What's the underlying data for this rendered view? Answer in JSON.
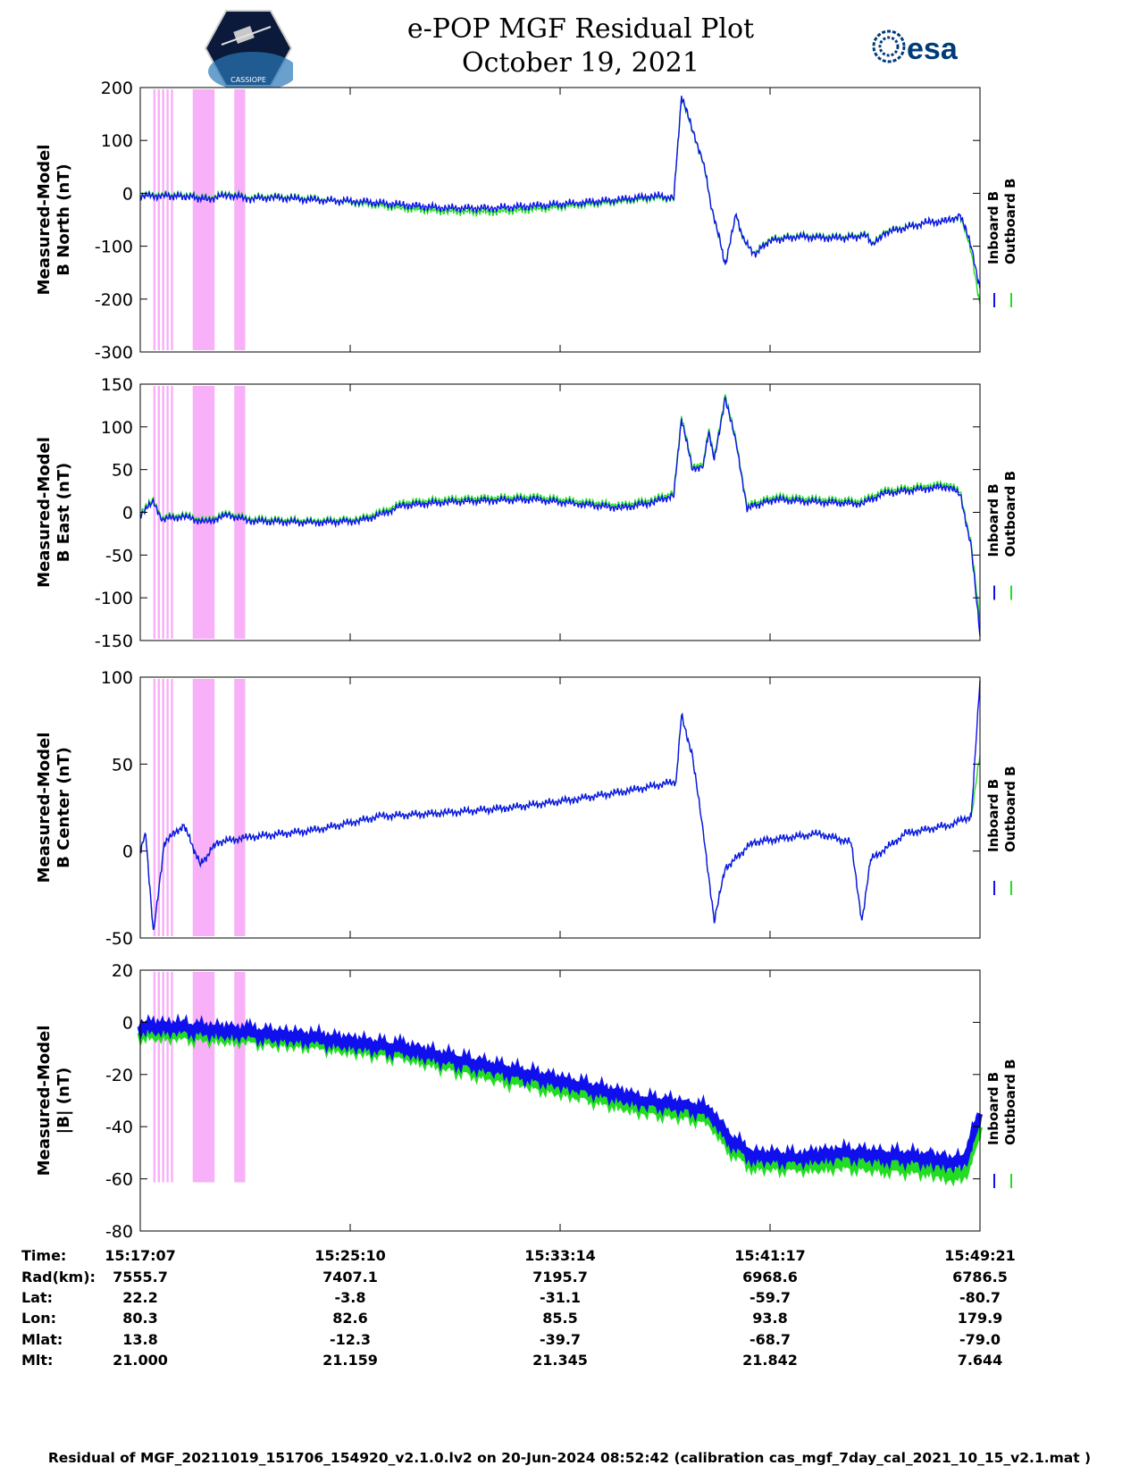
{
  "header": {
    "title_line1": "e-POP MGF Residual Plot",
    "title_line2": "October 19, 2021",
    "left_logo": "CASSIOPE mission logo",
    "left_logo_text": "CASSIOPE",
    "right_logo_text": "esa"
  },
  "colors": {
    "inboard": "#1010ee",
    "outboard": "#22dd22",
    "shade": "#f8b0f8"
  },
  "chart_data": [
    {
      "type": "line",
      "ylabel": [
        "Measured-Model",
        "B North (nT)"
      ],
      "ylim": [
        -300,
        200
      ],
      "yticks": [
        200,
        100,
        0,
        -100,
        -200,
        -300
      ],
      "legend": [
        "Inboard B",
        "Outboard B"
      ],
      "series": [
        {
          "name": "Inboard B",
          "points": [
            [
              0,
              -5
            ],
            [
              20,
              -5
            ],
            [
              45,
              -6
            ],
            [
              60,
              -12
            ],
            [
              80,
              -3
            ],
            [
              100,
              -10
            ],
            [
              120,
              -8
            ],
            [
              140,
              -10
            ],
            [
              160,
              -13
            ],
            [
              200,
              -15
            ],
            [
              240,
              -22
            ],
            [
              280,
              -28
            ],
            [
              320,
              -28
            ],
            [
              360,
              -24
            ],
            [
              400,
              -18
            ],
            [
              440,
              -12
            ],
            [
              470,
              -5
            ],
            [
              488,
              -8
            ],
            [
              495,
              185
            ],
            [
              505,
              120
            ],
            [
              515,
              60
            ],
            [
              522,
              -20
            ],
            [
              530,
              -90
            ],
            [
              535,
              -135
            ],
            [
              545,
              -40
            ],
            [
              552,
              -90
            ],
            [
              562,
              -115
            ],
            [
              575,
              -90
            ],
            [
              600,
              -82
            ],
            [
              640,
              -85
            ],
            [
              665,
              -80
            ],
            [
              670,
              -100
            ],
            [
              680,
              -75
            ],
            [
              720,
              -55
            ],
            [
              740,
              -52
            ],
            [
              750,
              -40
            ],
            [
              760,
              -100
            ],
            [
              768,
              -180
            ]
          ]
        },
        {
          "name": "Outboard B",
          "points": [
            [
              0,
              -3
            ],
            [
              20,
              -3
            ],
            [
              45,
              -4
            ],
            [
              60,
              -10
            ],
            [
              80,
              -1
            ],
            [
              100,
              -8
            ],
            [
              120,
              -6
            ],
            [
              140,
              -8
            ],
            [
              160,
              -11
            ],
            [
              200,
              -18
            ],
            [
              240,
              -28
            ],
            [
              280,
              -34
            ],
            [
              320,
              -35
            ],
            [
              360,
              -30
            ],
            [
              400,
              -22
            ],
            [
              440,
              -15
            ],
            [
              470,
              -8
            ],
            [
              488,
              -10
            ],
            [
              495,
              182
            ],
            [
              505,
              118
            ],
            [
              515,
              58
            ],
            [
              522,
              -22
            ],
            [
              530,
              -92
            ],
            [
              535,
              -133
            ],
            [
              545,
              -42
            ],
            [
              552,
              -92
            ],
            [
              562,
              -113
            ],
            [
              575,
              -88
            ],
            [
              600,
              -80
            ],
            [
              640,
              -83
            ],
            [
              665,
              -78
            ],
            [
              670,
              -98
            ],
            [
              680,
              -73
            ],
            [
              720,
              -55
            ],
            [
              740,
              -52
            ],
            [
              750,
              -42
            ],
            [
              760,
              -110
            ],
            [
              768,
              -210
            ]
          ]
        }
      ]
    },
    {
      "type": "line",
      "ylabel": [
        "Measured-Model",
        "B East (nT)"
      ],
      "ylim": [
        -150,
        150
      ],
      "yticks": [
        150,
        100,
        50,
        0,
        -50,
        -100,
        -150
      ],
      "legend": [
        "Inboard B",
        "Outboard B"
      ],
      "series": [
        {
          "name": "Inboard B",
          "points": [
            [
              0,
              -3
            ],
            [
              12,
              12
            ],
            [
              20,
              -8
            ],
            [
              40,
              -5
            ],
            [
              60,
              -12
            ],
            [
              80,
              -3
            ],
            [
              100,
              -10
            ],
            [
              160,
              -12
            ],
            [
              200,
              -10
            ],
            [
              220,
              -3
            ],
            [
              240,
              8
            ],
            [
              280,
              12
            ],
            [
              320,
              14
            ],
            [
              360,
              15
            ],
            [
              400,
              10
            ],
            [
              440,
              5
            ],
            [
              470,
              12
            ],
            [
              488,
              20
            ],
            [
              495,
              110
            ],
            [
              505,
              50
            ],
            [
              515,
              55
            ],
            [
              520,
              95
            ],
            [
              525,
              60
            ],
            [
              535,
              135
            ],
            [
              545,
              80
            ],
            [
              555,
              5
            ],
            [
              580,
              15
            ],
            [
              620,
              12
            ],
            [
              660,
              10
            ],
            [
              680,
              22
            ],
            [
              720,
              28
            ],
            [
              740,
              30
            ],
            [
              750,
              20
            ],
            [
              760,
              -40
            ],
            [
              768,
              -145
            ]
          ]
        },
        {
          "name": "Outboard B",
          "points": [
            [
              0,
              0
            ],
            [
              12,
              14
            ],
            [
              20,
              -6
            ],
            [
              40,
              -3
            ],
            [
              60,
              -10
            ],
            [
              80,
              -1
            ],
            [
              100,
              -8
            ],
            [
              160,
              -10
            ],
            [
              200,
              -8
            ],
            [
              220,
              0
            ],
            [
              240,
              11
            ],
            [
              280,
              15
            ],
            [
              320,
              17
            ],
            [
              360,
              18
            ],
            [
              400,
              13
            ],
            [
              440,
              8
            ],
            [
              470,
              15
            ],
            [
              488,
              23
            ],
            [
              495,
              113
            ],
            [
              505,
              53
            ],
            [
              515,
              58
            ],
            [
              520,
              98
            ],
            [
              525,
              63
            ],
            [
              535,
              138
            ],
            [
              545,
              83
            ],
            [
              555,
              8
            ],
            [
              580,
              18
            ],
            [
              620,
              15
            ],
            [
              660,
              13
            ],
            [
              680,
              25
            ],
            [
              720,
              31
            ],
            [
              740,
              33
            ],
            [
              750,
              23
            ],
            [
              760,
              -37
            ],
            [
              768,
              -130
            ]
          ]
        }
      ]
    },
    {
      "type": "line",
      "ylabel": [
        "Measured-Model",
        "B Center (nT)"
      ],
      "ylim": [
        -50,
        100
      ],
      "yticks": [
        100,
        50,
        0,
        -50
      ],
      "legend": [
        "Inboard B",
        "Outboard B"
      ],
      "series": [
        {
          "name": "Inboard B",
          "points": [
            [
              0,
              0
            ],
            [
              5,
              10
            ],
            [
              12,
              -48
            ],
            [
              22,
              5
            ],
            [
              40,
              15
            ],
            [
              55,
              -8
            ],
            [
              70,
              5
            ],
            [
              100,
              8
            ],
            [
              160,
              12
            ],
            [
              220,
              20
            ],
            [
              280,
              22
            ],
            [
              340,
              25
            ],
            [
              400,
              30
            ],
            [
              450,
              35
            ],
            [
              490,
              40
            ],
            [
              495,
              78
            ],
            [
              505,
              55
            ],
            [
              515,
              10
            ],
            [
              525,
              -40
            ],
            [
              535,
              -10
            ],
            [
              560,
              5
            ],
            [
              620,
              10
            ],
            [
              650,
              5
            ],
            [
              660,
              -40
            ],
            [
              668,
              -5
            ],
            [
              700,
              10
            ],
            [
              740,
              15
            ],
            [
              760,
              20
            ],
            [
              768,
              98
            ]
          ]
        },
        {
          "name": "Outboard B",
          "points": [
            [
              0,
              0
            ],
            [
              5,
              10
            ],
            [
              12,
              -48
            ],
            [
              22,
              5
            ],
            [
              40,
              15
            ],
            [
              55,
              -8
            ],
            [
              70,
              5
            ],
            [
              100,
              8
            ],
            [
              160,
              12
            ],
            [
              220,
              20
            ],
            [
              280,
              22
            ],
            [
              340,
              25
            ],
            [
              400,
              30
            ],
            [
              450,
              35
            ],
            [
              490,
              40
            ],
            [
              495,
              78
            ],
            [
              505,
              55
            ],
            [
              515,
              10
            ],
            [
              525,
              -40
            ],
            [
              535,
              -10
            ],
            [
              560,
              5
            ],
            [
              620,
              10
            ],
            [
              650,
              5
            ],
            [
              660,
              -40
            ],
            [
              668,
              -5
            ],
            [
              700,
              10
            ],
            [
              740,
              15
            ],
            [
              760,
              20
            ],
            [
              768,
              55
            ]
          ]
        }
      ]
    },
    {
      "type": "line",
      "ylabel": [
        "Measured-Model",
        "|B| (nT)"
      ],
      "ylim": [
        -80,
        20
      ],
      "yticks": [
        20,
        0,
        -20,
        -40,
        -60,
        -80
      ],
      "legend": [
        "Inboard B",
        "Outboard B"
      ],
      "series": [
        {
          "name": "Inboard B",
          "points": [
            [
              0,
              -1.5
            ],
            [
              40,
              -2
            ],
            [
              100,
              -4
            ],
            [
              160,
              -6
            ],
            [
              240,
              -10
            ],
            [
              320,
              -17
            ],
            [
              400,
              -24
            ],
            [
              460,
              -30
            ],
            [
              500,
              -32
            ],
            [
              520,
              -34
            ],
            [
              540,
              -45
            ],
            [
              560,
              -51
            ],
            [
              600,
              -52
            ],
            [
              640,
              -50
            ],
            [
              680,
              -51
            ],
            [
              720,
              -52
            ],
            [
              745,
              -54
            ],
            [
              755,
              -52
            ],
            [
              768,
              -35
            ]
          ]
        },
        {
          "name": "Outboard B",
          "points": [
            [
              0,
              -4
            ],
            [
              40,
              -4.5
            ],
            [
              100,
              -6
            ],
            [
              160,
              -8
            ],
            [
              240,
              -12
            ],
            [
              320,
              -20
            ],
            [
              400,
              -27
            ],
            [
              460,
              -33
            ],
            [
              500,
              -35
            ],
            [
              520,
              -37
            ],
            [
              540,
              -48
            ],
            [
              560,
              -54
            ],
            [
              600,
              -55
            ],
            [
              640,
              -54
            ],
            [
              680,
              -55
            ],
            [
              720,
              -56
            ],
            [
              745,
              -59
            ],
            [
              755,
              -57
            ],
            [
              768,
              -40
            ]
          ]
        }
      ]
    }
  ],
  "shaded_intervals": [
    [
      12,
      14
    ],
    [
      16,
      18
    ],
    [
      20,
      22
    ],
    [
      24,
      26
    ],
    [
      28,
      30
    ],
    [
      48,
      68
    ],
    [
      86,
      96
    ]
  ],
  "info_table": {
    "labels": [
      "Time:",
      "Rad(km):",
      "Lat:",
      "Lon:",
      "Mlat:",
      "Mlt:"
    ],
    "columns": [
      [
        "15:17:07",
        "7555.7",
        "22.2",
        "80.3",
        "13.8",
        "21.000"
      ],
      [
        "15:25:10",
        "7407.1",
        "-3.8",
        "82.6",
        "-12.3",
        "21.159"
      ],
      [
        "15:33:14",
        "7195.7",
        "-31.1",
        "85.5",
        "-39.7",
        "21.345"
      ],
      [
        "15:41:17",
        "6968.6",
        "-59.7",
        "93.8",
        "-68.7",
        "21.842"
      ],
      [
        "15:49:21",
        "6786.5",
        "-80.7",
        "179.9",
        "-79.0",
        "7.644"
      ]
    ]
  },
  "footer": "Residual of MGF_20211019_151706_154920_v2.1.0.lv2 on 20-Jun-2024 08:52:42 (calibration cas_mgf_7day_cal_2021_10_15_v2.1.mat )"
}
